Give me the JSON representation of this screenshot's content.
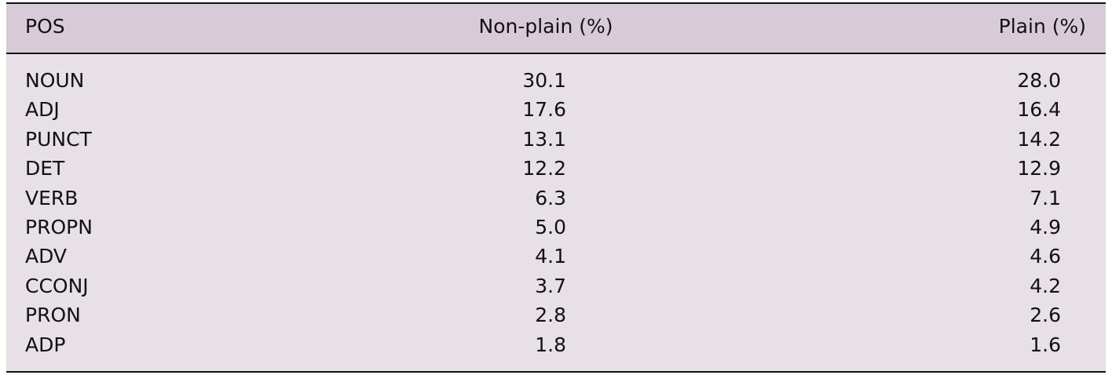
{
  "table": {
    "header": [
      "POS",
      "Non-plain (%)",
      "Plain (%)"
    ],
    "rows": [
      [
        "NOUN",
        "30.1",
        "28.0"
      ],
      [
        "ADJ",
        "17.6",
        "16.4"
      ],
      [
        "PUNCT",
        "13.1",
        "14.2"
      ],
      [
        "DET",
        "12.2",
        "12.9"
      ],
      [
        "VERB",
        "6.3",
        "7.1"
      ],
      [
        "PROPN",
        "5.0",
        "4.9"
      ],
      [
        "ADV",
        "4.1",
        "4.6"
      ],
      [
        "CCONJ",
        "3.7",
        "4.2"
      ],
      [
        "PRON",
        "2.8",
        "2.6"
      ],
      [
        "ADP",
        "1.8",
        "1.6"
      ]
    ]
  }
}
